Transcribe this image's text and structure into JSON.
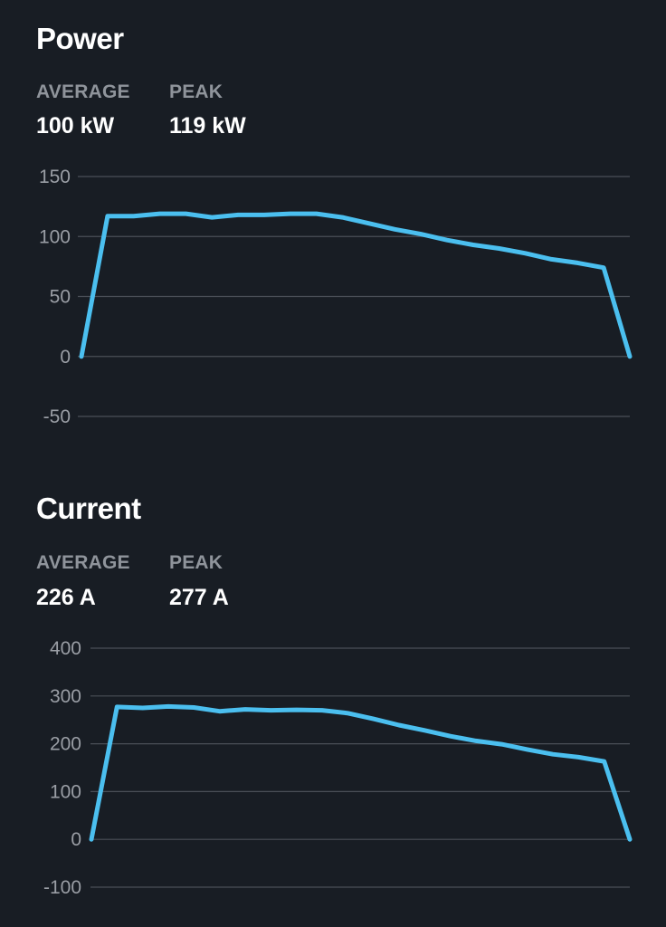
{
  "power": {
    "title": "Power",
    "stats": {
      "average_label": "AVERAGE",
      "average_value": "100 kW",
      "peak_label": "PEAK",
      "peak_value": "119 kW"
    }
  },
  "current": {
    "title": "Current",
    "stats": {
      "average_label": "AVERAGE",
      "average_value": "226 A",
      "peak_label": "PEAK",
      "peak_value": "277 A"
    }
  },
  "colors": {
    "background": "#181d24",
    "line": "#4bbfef",
    "grid": "#4a4f57",
    "tick_text": "#9a9ea5",
    "label_text": "#8f949b"
  },
  "chart_data": [
    {
      "type": "line",
      "title": "Power",
      "xlabel": "",
      "ylabel": "",
      "ylim": [
        -50,
        150
      ],
      "yticks": [
        150,
        100,
        50,
        0,
        -50
      ],
      "grid": true,
      "series": [
        {
          "values": [
            0,
            117,
            117,
            119,
            119,
            116,
            118,
            118,
            119,
            119,
            116,
            111,
            106,
            102,
            97,
            93,
            90,
            86,
            81,
            78,
            74,
            0
          ]
        }
      ]
    },
    {
      "type": "line",
      "title": "Current",
      "xlabel": "",
      "ylabel": "",
      "ylim": [
        -100,
        400
      ],
      "yticks": [
        400,
        300,
        200,
        100,
        0,
        -100
      ],
      "grid": true,
      "series": [
        {
          "values": [
            0,
            277,
            275,
            278,
            276,
            268,
            272,
            270,
            271,
            270,
            264,
            252,
            239,
            228,
            216,
            206,
            199,
            188,
            178,
            172,
            163,
            0
          ]
        }
      ]
    }
  ]
}
